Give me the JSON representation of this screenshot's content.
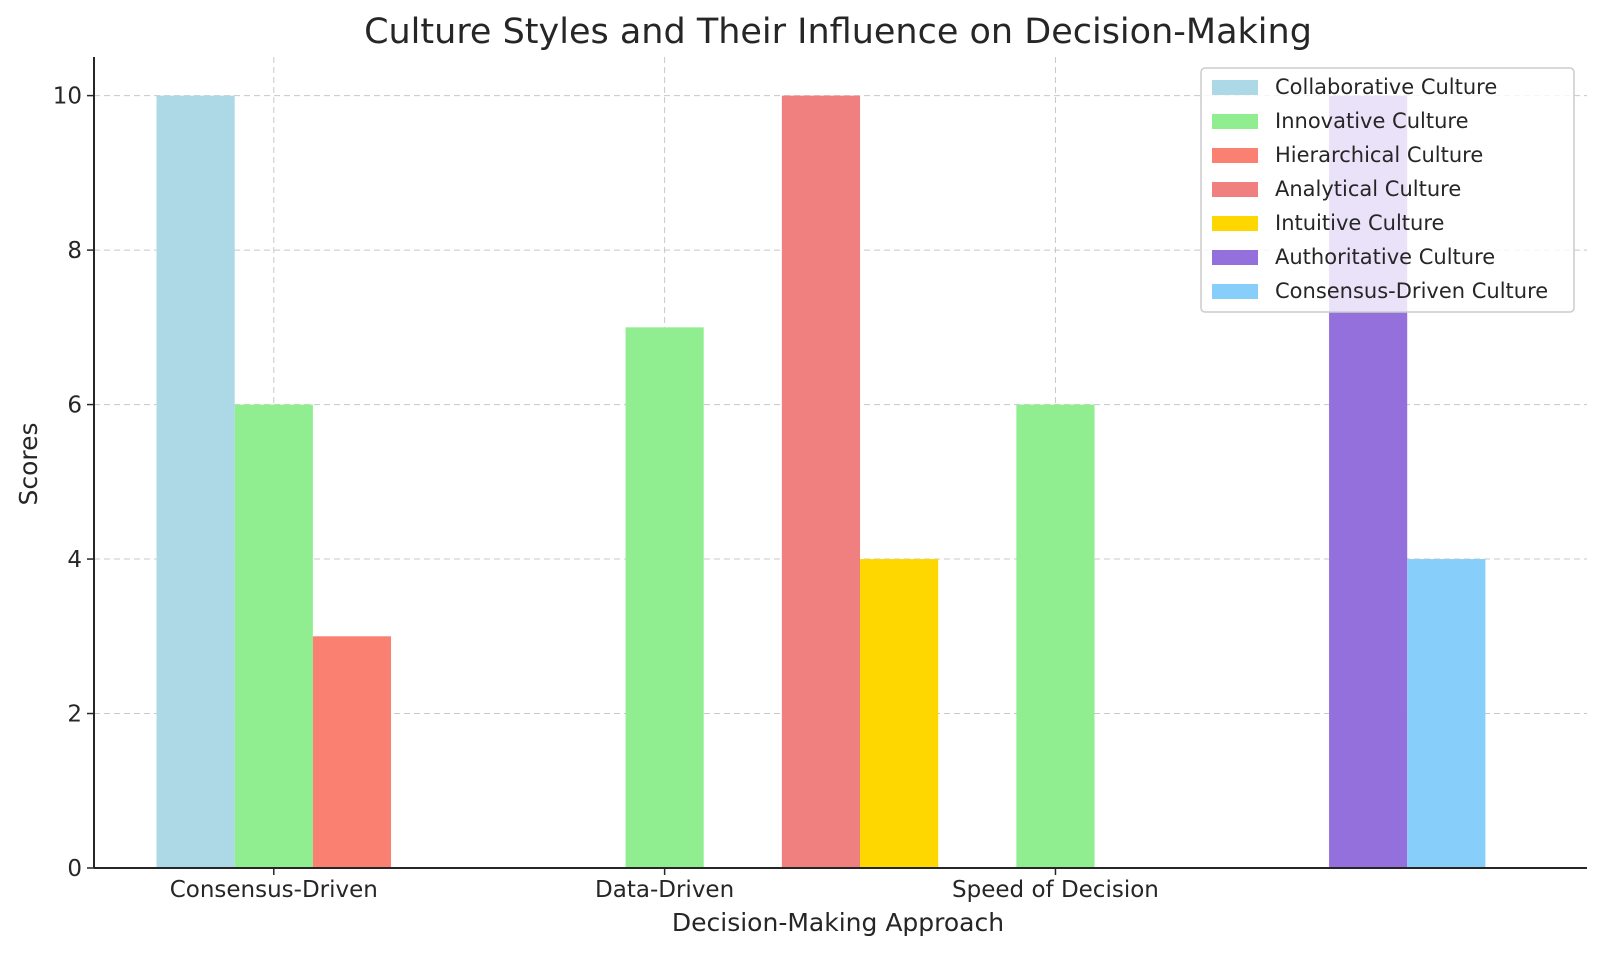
{
  "chart_data": {
    "type": "bar",
    "title": "Culture Styles and Their Influence on Decision-Making",
    "xlabel": "Decision-Making Approach",
    "ylabel": "Scores",
    "ylim": [
      0,
      10.5
    ],
    "yticks": [
      0,
      2,
      4,
      6,
      8,
      10
    ],
    "xticks": [
      {
        "label": "Consensus-Driven",
        "at": 1
      },
      {
        "label": "Data-Driven",
        "at": 6
      },
      {
        "label": "Speed of Decision",
        "at": 11
      }
    ],
    "grid": true,
    "legend_position": "top-right",
    "series": [
      {
        "name": "Collaborative Culture",
        "color": "#add8e6",
        "points": [
          {
            "x": 0,
            "y": 10
          }
        ]
      },
      {
        "name": "Innovative Culture",
        "color": "#90ee90",
        "points": [
          {
            "x": 1,
            "y": 6
          },
          {
            "x": 6,
            "y": 7
          },
          {
            "x": 11,
            "y": 6
          }
        ]
      },
      {
        "name": "Hierarchical Culture",
        "color": "#fa8072",
        "points": [
          {
            "x": 2,
            "y": 3
          }
        ]
      },
      {
        "name": "Analytical Culture",
        "color": "#f08080",
        "points": [
          {
            "x": 8,
            "y": 10
          }
        ]
      },
      {
        "name": "Intuitive Culture",
        "color": "#ffd700",
        "points": [
          {
            "x": 9,
            "y": 4
          }
        ]
      },
      {
        "name": "Authoritative Culture",
        "color": "#9370db",
        "points": [
          {
            "x": 15,
            "y": 10
          }
        ]
      },
      {
        "name": "Consensus-Driven Culture",
        "color": "#87cefa",
        "points": [
          {
            "x": 16,
            "y": 4
          }
        ]
      }
    ]
  }
}
